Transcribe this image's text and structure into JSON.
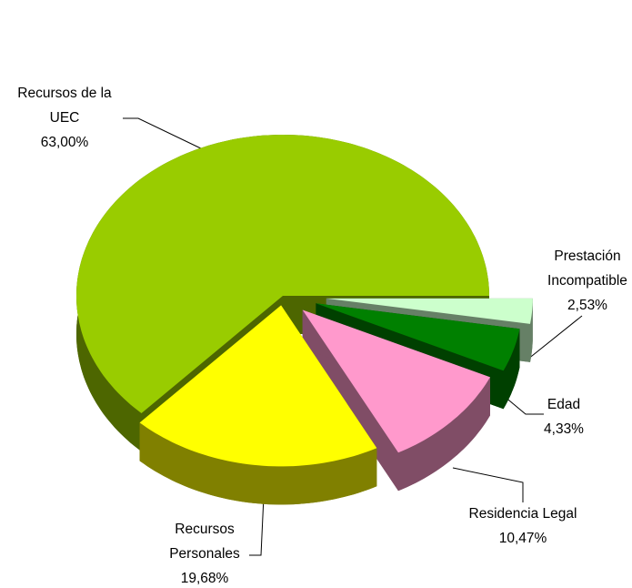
{
  "chart_data": {
    "type": "pie3d",
    "categories": [
      "Recursos de la UEC",
      "Recursos Personales",
      "Residencia Legal",
      "Edad",
      "Prestación Incompatible"
    ],
    "values": [
      63.0,
      19.68,
      10.47,
      4.33,
      2.53
    ],
    "value_labels": [
      "63,00%",
      "19,68%",
      "10,47%",
      "4,33%",
      "2,53%"
    ],
    "colors": [
      "#99cc00",
      "#ffff00",
      "#ff99cc",
      "#008000",
      "#ccffcc"
    ]
  }
}
